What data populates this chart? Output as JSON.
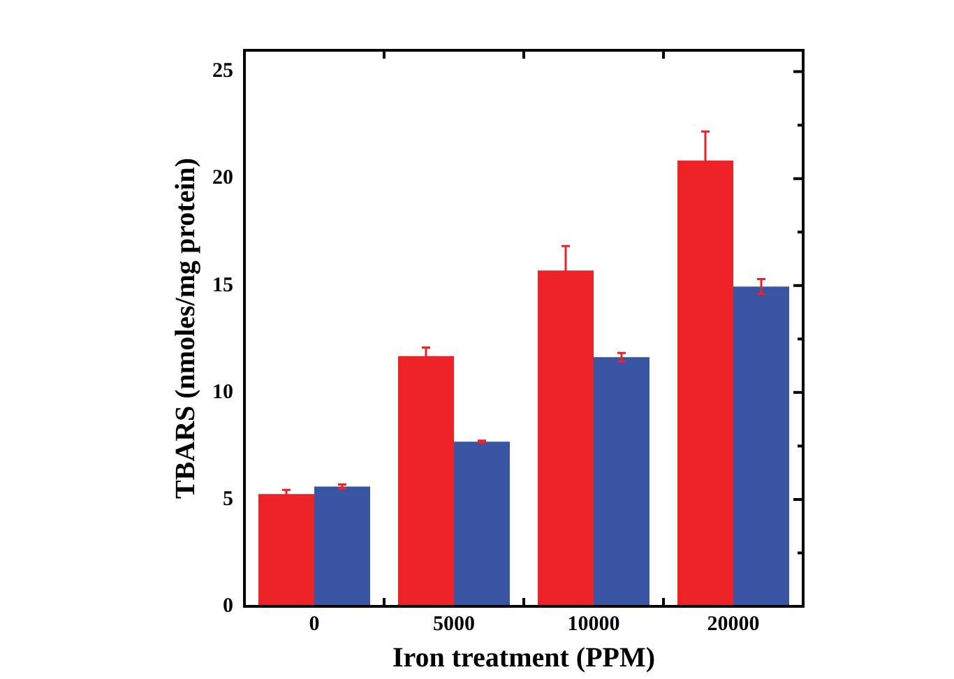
{
  "chart_data": {
    "type": "bar",
    "xlabel": "Iron treatment (PPM)",
    "ylabel": "TBARS (nmoles/mg protein)",
    "categories": [
      "0",
      "5000",
      "10000",
      "20000"
    ],
    "series": [
      {
        "color": "#ec2227",
        "values": [
          5.25,
          11.7,
          15.7,
          20.85
        ],
        "errors": [
          0.2,
          0.4,
          1.15,
          1.35
        ]
      },
      {
        "color": "#3a54a4",
        "values": [
          5.6,
          7.7,
          11.65,
          14.95
        ],
        "errors": [
          0.1,
          0.05,
          0.2,
          0.35
        ]
      }
    ],
    "ylim": [
      0,
      26
    ],
    "yticks": [
      0,
      {
        "value": 2.5,
        "label": null
      },
      5,
      {
        "value": 7.5,
        "label": null
      },
      10,
      {
        "value": 12.5,
        "label": null
      },
      15,
      {
        "value": 17.5,
        "label": null
      },
      20,
      {
        "value": 22.5,
        "label": null
      },
      25
    ],
    "grid": false,
    "legend": false
  }
}
